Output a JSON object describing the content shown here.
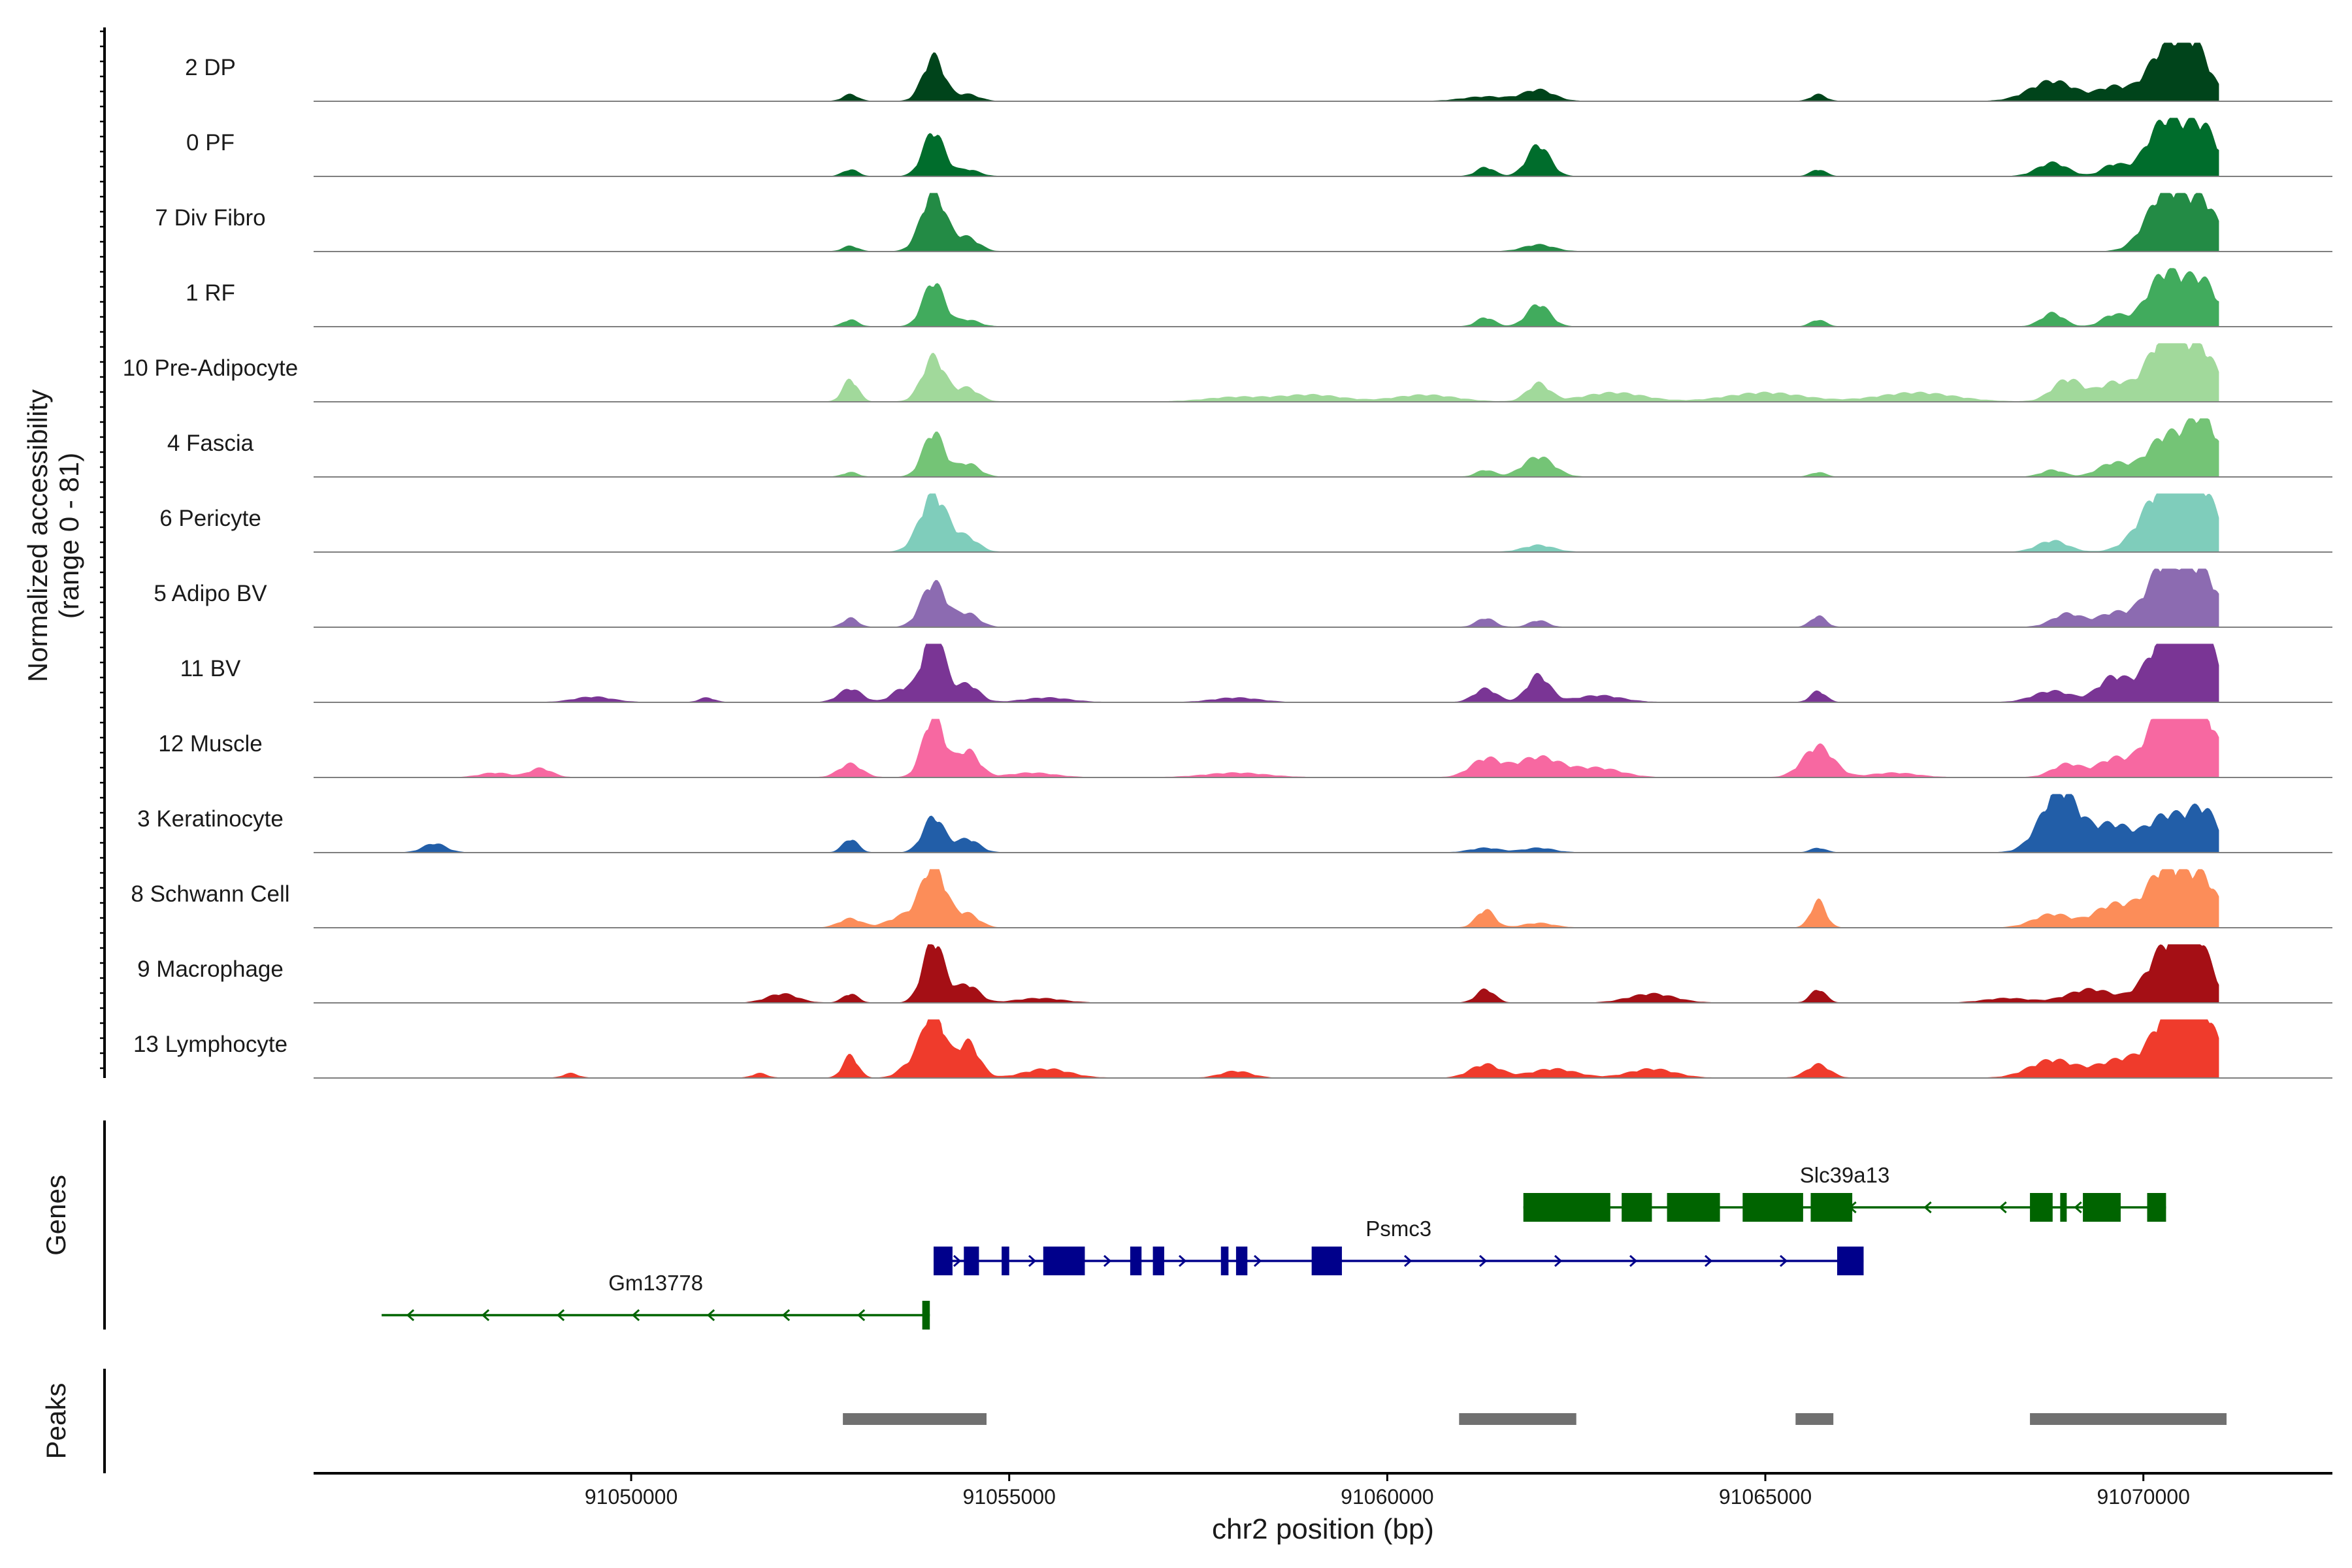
{
  "chart_data": {
    "type": "area",
    "title": "",
    "ylabel_line1": "Normalized accessibility",
    "ylabel_line2": "(range 0 - 81)",
    "yrange": [
      0,
      81
    ],
    "xlabel": "chr2 position (bp)",
    "xlim": [
      91045800,
      91072500
    ],
    "x_ticks": [
      {
        "value": 91050000,
        "label": "91050000"
      },
      {
        "value": 91055000,
        "label": "91055000"
      },
      {
        "value": 91060000,
        "label": "91060000"
      },
      {
        "value": 91065000,
        "label": "91065000"
      },
      {
        "value": 91070000,
        "label": "91070000"
      }
    ],
    "series": [
      {
        "name": "2 DP",
        "color": "#00441b",
        "peaks": [
          [
            91052900,
            0.15,
            100
          ],
          [
            91054000,
            1.0,
            140
          ],
          [
            91054450,
            0.15,
            150
          ],
          [
            91061300,
            0.1,
            300
          ],
          [
            91062000,
            0.25,
            200
          ],
          [
            91065700,
            0.15,
            100
          ],
          [
            91068800,
            0.45,
            300
          ],
          [
            91069600,
            0.3,
            200
          ],
          [
            91070300,
            1.15,
            250
          ],
          [
            91070700,
            1.0,
            200
          ]
        ]
      },
      {
        "name": "0 PF",
        "color": "#006d2c",
        "peaks": [
          [
            91052900,
            0.15,
            100
          ],
          [
            91054000,
            1.0,
            140
          ],
          [
            91054450,
            0.15,
            150
          ],
          [
            91061300,
            0.2,
            120
          ],
          [
            91062000,
            0.7,
            150
          ],
          [
            91065700,
            0.15,
            100
          ],
          [
            91068800,
            0.3,
            200
          ],
          [
            91069600,
            0.25,
            150
          ],
          [
            91070300,
            1.25,
            250
          ],
          [
            91070800,
            1.0,
            200
          ]
        ]
      },
      {
        "name": "7 Div Fibro",
        "color": "#238b45",
        "peaks": [
          [
            91052900,
            0.12,
            100
          ],
          [
            91054000,
            1.35,
            160
          ],
          [
            91054450,
            0.3,
            150
          ],
          [
            91062000,
            0.15,
            200
          ],
          [
            91070300,
            1.35,
            250
          ],
          [
            91070800,
            1.0,
            200
          ]
        ]
      },
      {
        "name": "1 RF",
        "color": "#41ab5d",
        "peaks": [
          [
            91052900,
            0.15,
            100
          ],
          [
            91054000,
            1.0,
            140
          ],
          [
            91054450,
            0.15,
            150
          ],
          [
            91061300,
            0.2,
            120
          ],
          [
            91062000,
            0.5,
            150
          ],
          [
            91065700,
            0.15,
            100
          ],
          [
            91068800,
            0.3,
            150
          ],
          [
            91069600,
            0.25,
            150
          ],
          [
            91070300,
            1.2,
            250
          ],
          [
            91070800,
            0.9,
            200
          ]
        ]
      },
      {
        "name": "10 Pre-Adipocyte",
        "color": "#a1d99b",
        "peaks": [
          [
            91052900,
            0.5,
            100
          ],
          [
            91054000,
            1.0,
            150
          ],
          [
            91054450,
            0.3,
            150
          ],
          [
            91058000,
            0.1,
            400
          ],
          [
            91059000,
            0.15,
            400
          ],
          [
            91060500,
            0.15,
            400
          ],
          [
            91062000,
            0.4,
            150
          ],
          [
            91063000,
            0.2,
            400
          ],
          [
            91065000,
            0.2,
            500
          ],
          [
            91067000,
            0.2,
            500
          ],
          [
            91069000,
            0.5,
            200
          ],
          [
            91069600,
            0.4,
            200
          ],
          [
            91070300,
            1.5,
            250
          ],
          [
            91070800,
            1.0,
            200
          ]
        ]
      },
      {
        "name": "4 Fascia",
        "color": "#74c476",
        "peaks": [
          [
            91052900,
            0.1,
            100
          ],
          [
            91054000,
            1.0,
            140
          ],
          [
            91054450,
            0.3,
            150
          ],
          [
            91061300,
            0.15,
            120
          ],
          [
            91062000,
            0.45,
            200
          ],
          [
            91065700,
            0.1,
            100
          ],
          [
            91068800,
            0.15,
            150
          ],
          [
            91069600,
            0.3,
            200
          ],
          [
            91070300,
            0.9,
            250
          ],
          [
            91070800,
            1.25,
            200
          ]
        ]
      },
      {
        "name": "6 Pericyte",
        "color": "#7fcdbb",
        "peaks": [
          [
            91054000,
            1.3,
            180
          ],
          [
            91054450,
            0.3,
            150
          ],
          [
            91062000,
            0.15,
            200
          ],
          [
            91068800,
            0.25,
            200
          ],
          [
            91070300,
            1.5,
            300
          ],
          [
            91070800,
            1.1,
            200
          ]
        ]
      },
      {
        "name": "5 Adipo BV",
        "color": "#8c6bb1",
        "peaks": [
          [
            91052900,
            0.2,
            100
          ],
          [
            91054000,
            1.0,
            160
          ],
          [
            91054450,
            0.3,
            150
          ],
          [
            91061300,
            0.2,
            120
          ],
          [
            91062000,
            0.15,
            120
          ],
          [
            91065700,
            0.25,
            100
          ],
          [
            91069000,
            0.3,
            200
          ],
          [
            91069600,
            0.3,
            200
          ],
          [
            91070300,
            1.45,
            250
          ],
          [
            91070800,
            1.1,
            200
          ]
        ]
      },
      {
        "name": "11 BV",
        "color": "#7a3595",
        "peaks": [
          [
            91049500,
            0.12,
            250
          ],
          [
            91051000,
            0.1,
            100
          ],
          [
            91052900,
            0.3,
            150
          ],
          [
            91053600,
            0.3,
            150
          ],
          [
            91054000,
            1.7,
            140
          ],
          [
            91054450,
            0.4,
            150
          ],
          [
            91055500,
            0.1,
            300
          ],
          [
            91058000,
            0.1,
            300
          ],
          [
            91061300,
            0.3,
            150
          ],
          [
            91062000,
            0.6,
            150
          ],
          [
            91062800,
            0.15,
            300
          ],
          [
            91065700,
            0.25,
            100
          ],
          [
            91068800,
            0.25,
            250
          ],
          [
            91069600,
            0.55,
            200
          ],
          [
            91070300,
            1.5,
            250
          ],
          [
            91070800,
            1.4,
            200
          ]
        ]
      },
      {
        "name": "12 Muscle",
        "color": "#f768a1",
        "peaks": [
          [
            91048200,
            0.1,
            200
          ],
          [
            91048800,
            0.2,
            150
          ],
          [
            91052900,
            0.3,
            150
          ],
          [
            91054000,
            1.4,
            140
          ],
          [
            91054450,
            0.6,
            150
          ],
          [
            91055300,
            0.1,
            300
          ],
          [
            91058000,
            0.1,
            400
          ],
          [
            91061300,
            0.4,
            200
          ],
          [
            91062000,
            0.45,
            300
          ],
          [
            91062800,
            0.2,
            300
          ],
          [
            91065700,
            0.7,
            200
          ],
          [
            91066700,
            0.1,
            300
          ],
          [
            91069000,
            0.3,
            200
          ],
          [
            91069600,
            0.4,
            200
          ],
          [
            91070300,
            1.6,
            250
          ],
          [
            91070800,
            1.3,
            200
          ]
        ]
      },
      {
        "name": "3 Keratinocyte",
        "color": "#225ea8",
        "peaks": [
          [
            91047400,
            0.2,
            150
          ],
          [
            91052900,
            0.3,
            100
          ],
          [
            91054000,
            0.8,
            140
          ],
          [
            91054450,
            0.3,
            150
          ],
          [
            91061300,
            0.1,
            200
          ],
          [
            91062000,
            0.1,
            200
          ],
          [
            91065700,
            0.1,
            100
          ],
          [
            91068900,
            1.4,
            250
          ],
          [
            91069600,
            0.6,
            250
          ],
          [
            91070300,
            0.8,
            250
          ],
          [
            91070800,
            0.9,
            200
          ]
        ]
      },
      {
        "name": "8 Schwann Cell",
        "color": "#fc8d59",
        "peaks": [
          [
            91052900,
            0.2,
            150
          ],
          [
            91053600,
            0.25,
            200
          ],
          [
            91054000,
            1.4,
            160
          ],
          [
            91054450,
            0.3,
            150
          ],
          [
            91061300,
            0.4,
            120
          ],
          [
            91062000,
            0.1,
            200
          ],
          [
            91065700,
            0.6,
            100
          ],
          [
            91068800,
            0.3,
            250
          ],
          [
            91069600,
            0.5,
            250
          ],
          [
            91070300,
            1.35,
            250
          ],
          [
            91070800,
            1.0,
            200
          ]
        ]
      },
      {
        "name": "9 Macrophage",
        "color": "#a50f15",
        "peaks": [
          [
            91052000,
            0.2,
            200
          ],
          [
            91052900,
            0.2,
            100
          ],
          [
            91054000,
            1.4,
            140
          ],
          [
            91054450,
            0.4,
            150
          ],
          [
            91055400,
            0.1,
            300
          ],
          [
            91061300,
            0.3,
            120
          ],
          [
            91063500,
            0.2,
            300
          ],
          [
            91065700,
            0.3,
            100
          ],
          [
            91068200,
            0.1,
            300
          ],
          [
            91069300,
            0.3,
            300
          ],
          [
            91070300,
            1.2,
            250
          ],
          [
            91070700,
            1.3,
            200
          ]
        ]
      },
      {
        "name": "13 Lymphocyte",
        "color": "#ef3b2c",
        "peaks": [
          [
            91049200,
            0.1,
            100
          ],
          [
            91051700,
            0.1,
            100
          ],
          [
            91052900,
            0.5,
            100
          ],
          [
            91053700,
            0.3,
            150
          ],
          [
            91054000,
            1.6,
            140
          ],
          [
            91054450,
            0.8,
            150
          ],
          [
            91055500,
            0.2,
            300
          ],
          [
            91058000,
            0.15,
            200
          ],
          [
            91061300,
            0.3,
            200
          ],
          [
            91062200,
            0.2,
            300
          ],
          [
            91063500,
            0.2,
            300
          ],
          [
            91065700,
            0.3,
            150
          ],
          [
            91068800,
            0.4,
            300
          ],
          [
            91069700,
            0.4,
            300
          ],
          [
            91070400,
            1.6,
            250
          ],
          [
            91070800,
            1.2,
            200
          ]
        ]
      }
    ],
    "genes": [
      {
        "name": "Slc39a13",
        "strand": "-",
        "color": "#006400",
        "start": 91061800,
        "end": 91070300,
        "row": 1,
        "exons": [
          [
            91061800,
            91062950
          ],
          [
            91063100,
            91063500
          ],
          [
            91063700,
            91064400
          ],
          [
            91064700,
            91065500
          ],
          [
            91065600,
            91066150
          ],
          [
            91068500,
            91068800
          ],
          [
            91068900,
            91068950
          ],
          [
            91069200,
            91069700
          ],
          [
            91070050,
            91070300
          ]
        ]
      },
      {
        "name": "Psmc3",
        "strand": "+",
        "color": "#00008b",
        "start": 91054000,
        "end": 91066300,
        "row": 2,
        "exons": [
          [
            91054000,
            91054250
          ],
          [
            91054400,
            91054600
          ],
          [
            91054900,
            91055000
          ],
          [
            91055450,
            91056000
          ],
          [
            91056600,
            91056750
          ],
          [
            91056900,
            91057050
          ],
          [
            91057800,
            91057900
          ],
          [
            91058000,
            91058150
          ],
          [
            91059000,
            91059400
          ],
          [
            91065950,
            91066300
          ]
        ]
      },
      {
        "name": "Gm13778",
        "strand": "-",
        "color": "#006400",
        "start": 91046700,
        "end": 91053950,
        "row": 3,
        "exons": [
          [
            91053850,
            91053950
          ]
        ]
      }
    ],
    "genes_label": "Genes",
    "peaks_label": "Peaks",
    "peak_regions": [
      [
        91052800,
        91054700
      ],
      [
        91060950,
        91062500
      ],
      [
        91065400,
        91065900
      ],
      [
        91068500,
        91071100
      ]
    ]
  }
}
